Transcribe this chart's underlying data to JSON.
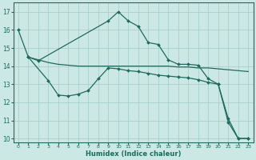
{
  "xlabel": "Humidex (Indice chaleur)",
  "xlim": [
    -0.5,
    23.5
  ],
  "ylim": [
    9.8,
    17.5
  ],
  "yticks": [
    10,
    11,
    12,
    13,
    14,
    15,
    16,
    17
  ],
  "xticks": [
    0,
    1,
    2,
    3,
    4,
    5,
    6,
    7,
    8,
    9,
    10,
    11,
    12,
    13,
    14,
    15,
    16,
    17,
    18,
    19,
    20,
    21,
    22,
    23
  ],
  "bg_color": "#cce8e5",
  "grid_color": "#aad0cc",
  "line_color": "#1e6b5e",
  "curve1_x": [
    0,
    1,
    2,
    9,
    10,
    11,
    12,
    13,
    14,
    15,
    16,
    17,
    18,
    19,
    20,
    21,
    22,
    23
  ],
  "curve1_y": [
    16.0,
    14.5,
    14.3,
    16.5,
    17.0,
    16.5,
    16.2,
    15.3,
    15.2,
    14.35,
    14.1,
    14.1,
    14.05,
    13.3,
    13.0,
    11.1,
    10.0,
    10.0
  ],
  "curve2_x": [
    1,
    2,
    3,
    4,
    5,
    6,
    7,
    8,
    9,
    10,
    11,
    12,
    13,
    14,
    15,
    16,
    17,
    18,
    19,
    20,
    21,
    22,
    23
  ],
  "curve2_y": [
    14.5,
    14.35,
    14.2,
    14.1,
    14.05,
    14.0,
    14.0,
    14.0,
    14.0,
    14.0,
    14.0,
    14.0,
    14.0,
    14.0,
    14.0,
    13.95,
    13.95,
    13.9,
    13.9,
    13.85,
    13.8,
    13.75,
    13.7
  ],
  "curve3_x": [
    1,
    3,
    4,
    5,
    6,
    7,
    8,
    9,
    10,
    11,
    12,
    13,
    14,
    15,
    16,
    17,
    18,
    19,
    20,
    21,
    22,
    23
  ],
  "curve3_y": [
    14.5,
    13.2,
    12.4,
    12.35,
    12.45,
    12.65,
    13.3,
    13.9,
    13.85,
    13.75,
    13.7,
    13.6,
    13.5,
    13.45,
    13.4,
    13.35,
    13.25,
    13.1,
    13.0,
    10.9,
    10.0,
    10.0
  ]
}
